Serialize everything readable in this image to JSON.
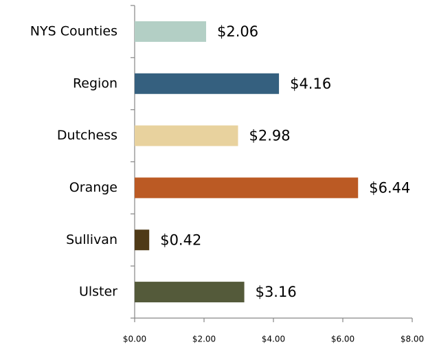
{
  "chart_data": {
    "type": "bar",
    "orientation": "horizontal",
    "categories": [
      "NYS Counties",
      "Region",
      "Dutchess",
      "Orange",
      "Sullivan",
      "Ulster"
    ],
    "values": [
      2.06,
      4.16,
      2.98,
      6.44,
      0.42,
      3.16
    ],
    "value_labels": [
      "$2.06",
      "$4.16",
      "$2.98",
      "$6.44",
      "$0.42",
      "$3.16"
    ],
    "colors": [
      "#b3cfc5",
      "#35607f",
      "#e8d29e",
      "#bb5a24",
      "#4f3a17",
      "#545a3a"
    ],
    "xlim": [
      0,
      8
    ],
    "xticks": [
      {
        "value": 0,
        "label": "$0.00"
      },
      {
        "value": 2,
        "label": "$2.00"
      },
      {
        "value": 4,
        "label": "$4.00"
      },
      {
        "value": 6,
        "label": "$6.00"
      },
      {
        "value": 8,
        "label": "$8.00"
      }
    ],
    "grid": false
  }
}
